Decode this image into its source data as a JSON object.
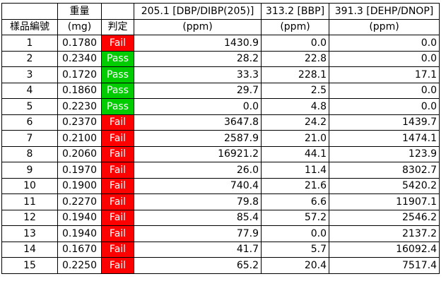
{
  "header": {
    "row1": {
      "weight": "重量",
      "col205": "205.1 [DBP/DIBP(205)]",
      "col313": "313.2 [BBP]",
      "col391": "391.3 [DEHP/DNOP]"
    },
    "row2": {
      "sample": "樣品編號",
      "weight_unit": "(mg)",
      "result": "判定",
      "unit205": "(ppm)",
      "unit313": "(ppm)",
      "unit391": "(ppm)"
    }
  },
  "rows": [
    {
      "id": "1",
      "weight": "0.1780",
      "result": "Fail",
      "v205": "1430.9",
      "v313": "0.0",
      "v391": "0.0"
    },
    {
      "id": "2",
      "weight": "0.2340",
      "result": "Pass",
      "v205": "28.2",
      "v313": "22.8",
      "v391": "0.0"
    },
    {
      "id": "3",
      "weight": "0.1720",
      "result": "Pass",
      "v205": "33.3",
      "v313": "228.1",
      "v391": "17.1"
    },
    {
      "id": "4",
      "weight": "0.1860",
      "result": "Pass",
      "v205": "29.7",
      "v313": "2.5",
      "v391": "0.0"
    },
    {
      "id": "5",
      "weight": "0.2230",
      "result": "Pass",
      "v205": "0.0",
      "v313": "4.8",
      "v391": "0.0"
    },
    {
      "id": "6",
      "weight": "0.2370",
      "result": "Fail",
      "v205": "3647.8",
      "v313": "24.2",
      "v391": "1439.7"
    },
    {
      "id": "7",
      "weight": "0.2100",
      "result": "Fail",
      "v205": "2587.9",
      "v313": "21.0",
      "v391": "1474.1"
    },
    {
      "id": "8",
      "weight": "0.2060",
      "result": "Fail",
      "v205": "16921.2",
      "v313": "44.1",
      "v391": "123.9"
    },
    {
      "id": "9",
      "weight": "0.1970",
      "result": "Fail",
      "v205": "26.0",
      "v313": "11.4",
      "v391": "8302.7"
    },
    {
      "id": "10",
      "weight": "0.1900",
      "result": "Fail",
      "v205": "740.4",
      "v313": "21.6",
      "v391": "5420.2"
    },
    {
      "id": "11",
      "weight": "0.2270",
      "result": "Fail",
      "v205": "79.8",
      "v313": "6.6",
      "v391": "11907.1"
    },
    {
      "id": "12",
      "weight": "0.1940",
      "result": "Fail",
      "v205": "85.4",
      "v313": "57.2",
      "v391": "2546.2"
    },
    {
      "id": "13",
      "weight": "0.1940",
      "result": "Fail",
      "v205": "77.9",
      "v313": "0.0",
      "v391": "2137.2"
    },
    {
      "id": "14",
      "weight": "0.1670",
      "result": "Fail",
      "v205": "41.7",
      "v313": "5.7",
      "v391": "16092.4"
    },
    {
      "id": "15",
      "weight": "0.2250",
      "result": "Fail",
      "v205": "65.2",
      "v313": "20.4",
      "v391": "7517.4"
    }
  ],
  "colors": {
    "fail": "#ff0000",
    "pass": "#00cc00",
    "text_on_status": "#ffffff"
  }
}
